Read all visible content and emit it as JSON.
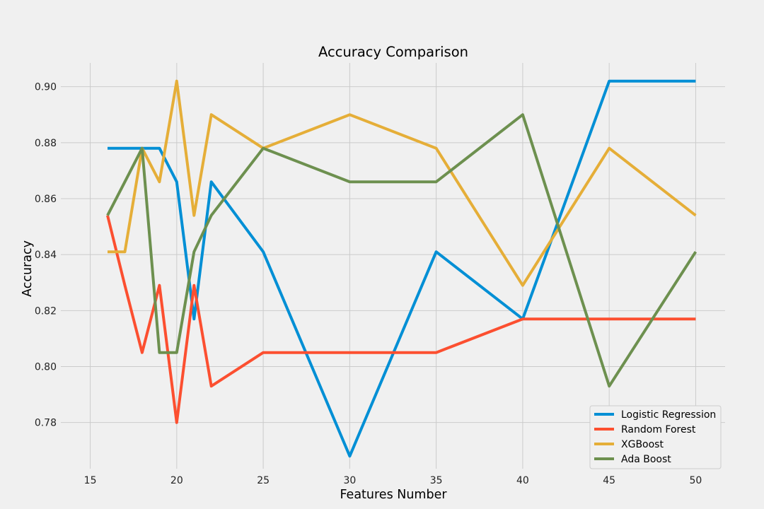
{
  "chart_data": {
    "type": "line",
    "title": "Accuracy Comparison",
    "xlabel": "Features Number",
    "ylabel": "Accuracy",
    "xlim": [
      13.3,
      51.7
    ],
    "ylim": [
      0.7635,
      0.9085
    ],
    "xticks": [
      15,
      20,
      25,
      30,
      35,
      40,
      45,
      50
    ],
    "yticks": [
      0.78,
      0.8,
      0.82,
      0.84,
      0.86,
      0.88,
      0.9
    ],
    "ytick_labels": [
      "0.78",
      "0.80",
      "0.82",
      "0.84",
      "0.86",
      "0.88",
      "0.90"
    ],
    "grid": true,
    "legend_position": "lower-right",
    "x": [
      16,
      17,
      18,
      19,
      20,
      21,
      22,
      25,
      30,
      35,
      40,
      45,
      50
    ],
    "series": [
      {
        "name": "Logistic Regression",
        "color": "#008fd5",
        "values": [
          0.878,
          0.878,
          0.878,
          0.878,
          0.866,
          0.817,
          0.866,
          0.841,
          0.768,
          0.841,
          0.817,
          0.902,
          0.902
        ]
      },
      {
        "name": "Random Forest",
        "color": "#fc4f30",
        "values": [
          0.854,
          0.829,
          0.805,
          0.829,
          0.78,
          0.829,
          0.793,
          0.805,
          0.805,
          0.805,
          0.817,
          0.817,
          0.817
        ]
      },
      {
        "name": "XGBoost",
        "color": "#e5ae38",
        "values": [
          0.841,
          0.841,
          0.878,
          0.866,
          0.902,
          0.854,
          0.89,
          0.878,
          0.89,
          0.878,
          0.829,
          0.878,
          0.854
        ]
      },
      {
        "name": "Ada Boost",
        "color": "#6d904f",
        "values": [
          0.854,
          0.866,
          0.878,
          0.805,
          0.805,
          0.841,
          0.854,
          0.878,
          0.866,
          0.866,
          0.89,
          0.793,
          0.841
        ]
      }
    ]
  }
}
